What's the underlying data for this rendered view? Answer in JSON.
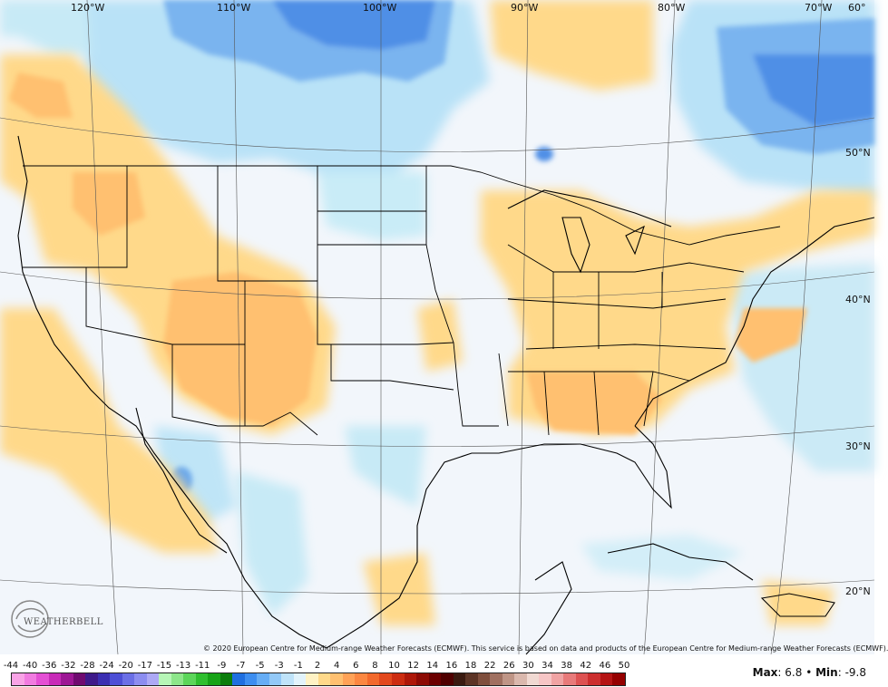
{
  "map": {
    "lon_labels": [
      "120°W",
      "110°W",
      "100°W",
      "90°W",
      "80°W",
      "70°W",
      "60°"
    ],
    "lat_labels": [
      "50°N",
      "40°N",
      "30°N",
      "20°N"
    ]
  },
  "legend": {
    "ticks": [
      "-44",
      "-40",
      "-36",
      "-32",
      "-28",
      "-24",
      "-20",
      "-17",
      "-15",
      "-13",
      "-11",
      "-9",
      "-7",
      "-5",
      "-3",
      "-1",
      "2",
      "4",
      "6",
      "8",
      "10",
      "12",
      "14",
      "16",
      "18",
      "22",
      "26",
      "30",
      "34",
      "38",
      "42",
      "46",
      "50"
    ],
    "colors": [
      "#f9a3e6",
      "#f17be0",
      "#e44fd4",
      "#c82bb8",
      "#9d1795",
      "#6f0b70",
      "#3e1a8a",
      "#3b2fb2",
      "#4d4fd6",
      "#6b6fe6",
      "#8c8df0",
      "#ada9f5",
      "#b6f5b6",
      "#8de68a",
      "#5cd65a",
      "#2fbf2f",
      "#17a317",
      "#0b7d0b",
      "#1f6fe0",
      "#3d8ef0",
      "#66adf5",
      "#93c9f7",
      "#bfe3f9",
      "#e2f3fb",
      "#fff2c4",
      "#ffd98a",
      "#ffc070",
      "#ffa257",
      "#fb8741",
      "#f2692c",
      "#e2481c",
      "#cc2c10",
      "#ad1708",
      "#8c0a04",
      "#6b0000",
      "#4f0000",
      "#3a1a10",
      "#5c3425",
      "#7f4f3d",
      "#a07060",
      "#bf9586",
      "#dab8ad",
      "#f0d9d2",
      "#f6c5c5",
      "#f0a3a3",
      "#e87a7a",
      "#dd5252",
      "#cc2f2f",
      "#b51414",
      "#950000"
    ],
    "copyright": "© 2020 European Centre for Medium-range Weather Forecasts (ECMWF). This service is based on data and products of the European Centre for Medium-range Weather Forecasts (ECMWF).",
    "max_label": "Max",
    "max_value": "6.8",
    "separator": "•",
    "min_label": "Min",
    "min_value": "-9.8"
  },
  "logo": {
    "text": "WEATHERBELL"
  }
}
